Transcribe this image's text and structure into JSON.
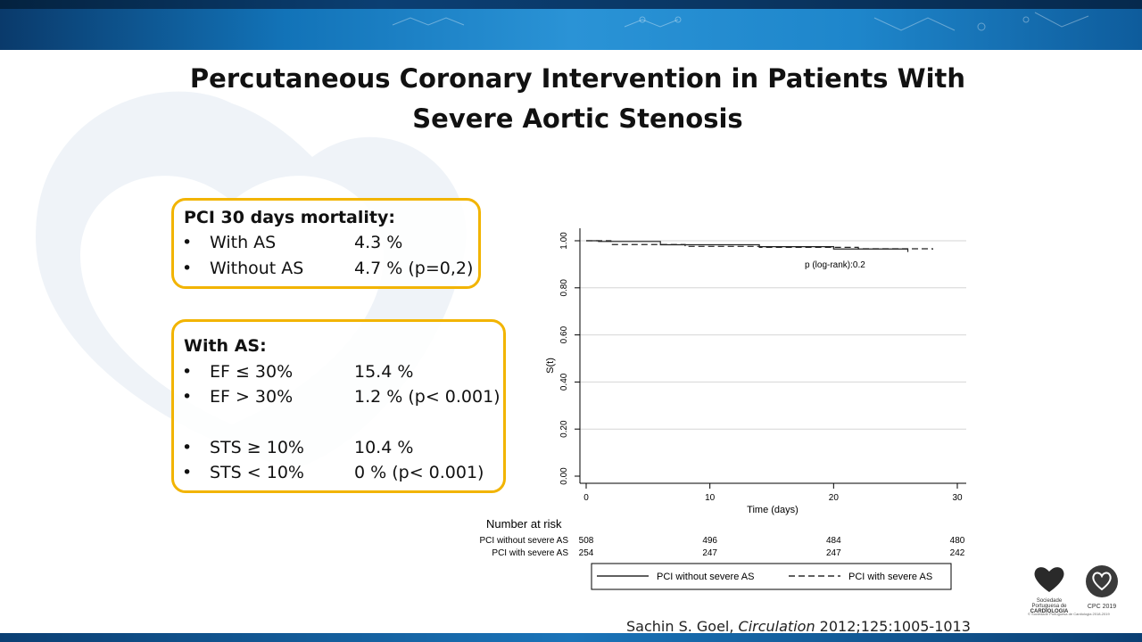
{
  "slide": {
    "title_line1": "Percutaneous Coronary Intervention in Patients With",
    "title_line2": "Severe Aortic Stenosis",
    "citation_author": "Sachin S. Goel, ",
    "citation_journal": "Circulation",
    "citation_ref": " 2012;125:1005-1013"
  },
  "box1": {
    "header": "PCI 30 days mortality:",
    "rows": [
      {
        "bullet": "•",
        "label": "With AS",
        "value": "4.3 %"
      },
      {
        "bullet": "•",
        "label": "Without AS",
        "value": "4.7 % (p=0,2)"
      }
    ]
  },
  "box2": {
    "header": "With AS:",
    "rows": [
      {
        "bullet": "•",
        "label": "EF ≤ 30%",
        "value": "15.4 %"
      },
      {
        "bullet": "•",
        "label": "EF > 30%",
        "value": "1.2 % (p< 0.001)"
      },
      {
        "bullet": "•",
        "label": "STS ≥ 10%",
        "value": "10.4 %"
      },
      {
        "bullet": "•",
        "label": "STS < 10%",
        "value": "0 % (p< 0.001)"
      }
    ]
  },
  "logos": {
    "spc_text1": "Sociedade Portuguesa de",
    "spc_text2": "CARDIOLOGIA",
    "cpc_text": "CPC 2019",
    "footnote": "© Sociedade Portuguesa de Cardiologia 2018-2019"
  },
  "colors": {
    "accent_box": "#f2b400",
    "banner": "#1e86cb"
  },
  "chart_data": {
    "type": "line",
    "title": "",
    "xlabel": "Time (days)",
    "ylabel": "S(t)",
    "xlim": [
      0,
      30
    ],
    "ylim": [
      0,
      1
    ],
    "xticks": [
      0,
      10,
      20,
      30
    ],
    "xtick_labels": [
      "0",
      "10",
      "20",
      "30"
    ],
    "yticks": [
      0,
      0.2,
      0.4,
      0.6,
      0.8,
      1.0
    ],
    "ytick_labels": [
      "0.00",
      "0.20",
      "0.40",
      "0.60",
      "0.80",
      "1.00"
    ],
    "grid": "horizontal",
    "annotation": "p (log-rank):0.2",
    "series": [
      {
        "name": "PCI without severe AS",
        "style": "solid",
        "x": [
          0,
          1,
          6,
          6,
          14,
          20,
          26
        ],
        "y": [
          1.0,
          0.997,
          0.997,
          0.983,
          0.975,
          0.965,
          0.952
        ]
      },
      {
        "name": "PCI with severe AS",
        "style": "dashed",
        "x": [
          0,
          2,
          8,
          14,
          22,
          28
        ],
        "y": [
          1.0,
          0.984,
          0.976,
          0.972,
          0.966,
          0.962
        ]
      }
    ],
    "legend_position": "bottom",
    "risk_table": {
      "header": "Number at risk",
      "rows": [
        {
          "label": "PCI without severe AS",
          "values": [
            "508",
            "496",
            "484",
            "480"
          ]
        },
        {
          "label": "PCI with severe AS",
          "values": [
            "254",
            "247",
            "247",
            "242"
          ]
        }
      ]
    }
  }
}
